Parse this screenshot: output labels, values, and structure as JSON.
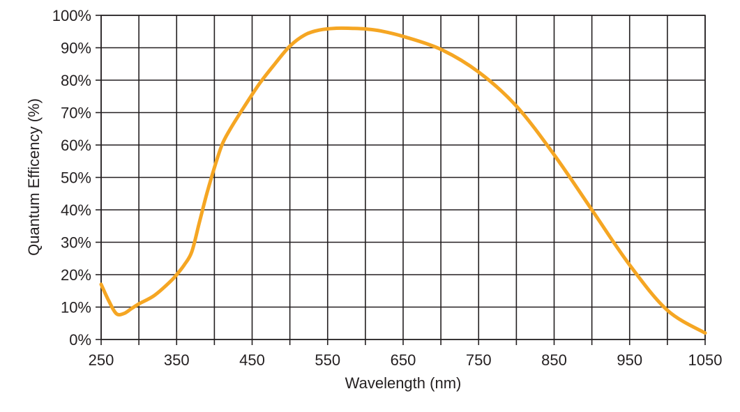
{
  "chart_data": {
    "type": "line",
    "title": "",
    "xlabel": "Wavelength (nm)",
    "ylabel": "Quantum Efficency (%)",
    "xlim": [
      250,
      1050
    ],
    "ylim": [
      0,
      100
    ],
    "x_ticks": [
      250,
      300,
      350,
      400,
      450,
      500,
      550,
      600,
      650,
      700,
      750,
      800,
      850,
      900,
      950,
      1000,
      1050
    ],
    "x_tick_labels": [
      "250",
      "",
      "350",
      "",
      "450",
      "",
      "550",
      "",
      "650",
      "",
      "750",
      "",
      "850",
      "",
      "950",
      "",
      "1050"
    ],
    "y_ticks": [
      0,
      10,
      20,
      30,
      40,
      50,
      60,
      70,
      80,
      90,
      100
    ],
    "y_tick_labels": [
      "0%",
      "10%",
      "20%",
      "30%",
      "40%",
      "50%",
      "60%",
      "70%",
      "80%",
      "90%",
      "100%"
    ],
    "grid": true,
    "line_color": "#f5a623",
    "series": [
      {
        "name": "",
        "x": [
          250,
          260,
          270,
          280,
          290,
          300,
          320,
          340,
          350,
          360,
          370,
          380,
          390,
          400,
          410,
          420,
          440,
          460,
          480,
          500,
          520,
          540,
          560,
          580,
          600,
          620,
          650,
          700,
          750,
          800,
          850,
          900,
          950,
          1000,
          1050
        ],
        "y": [
          17,
          12,
          8,
          8,
          9.5,
          11,
          13.5,
          17.5,
          20,
          23,
          27,
          36,
          45,
          53,
          60,
          64.5,
          72,
          79,
          85,
          90.5,
          94,
          95.5,
          96,
          96,
          95.8,
          95.2,
          93.5,
          89.5,
          82.5,
          72,
          57,
          40,
          23,
          9,
          2
        ]
      }
    ]
  }
}
